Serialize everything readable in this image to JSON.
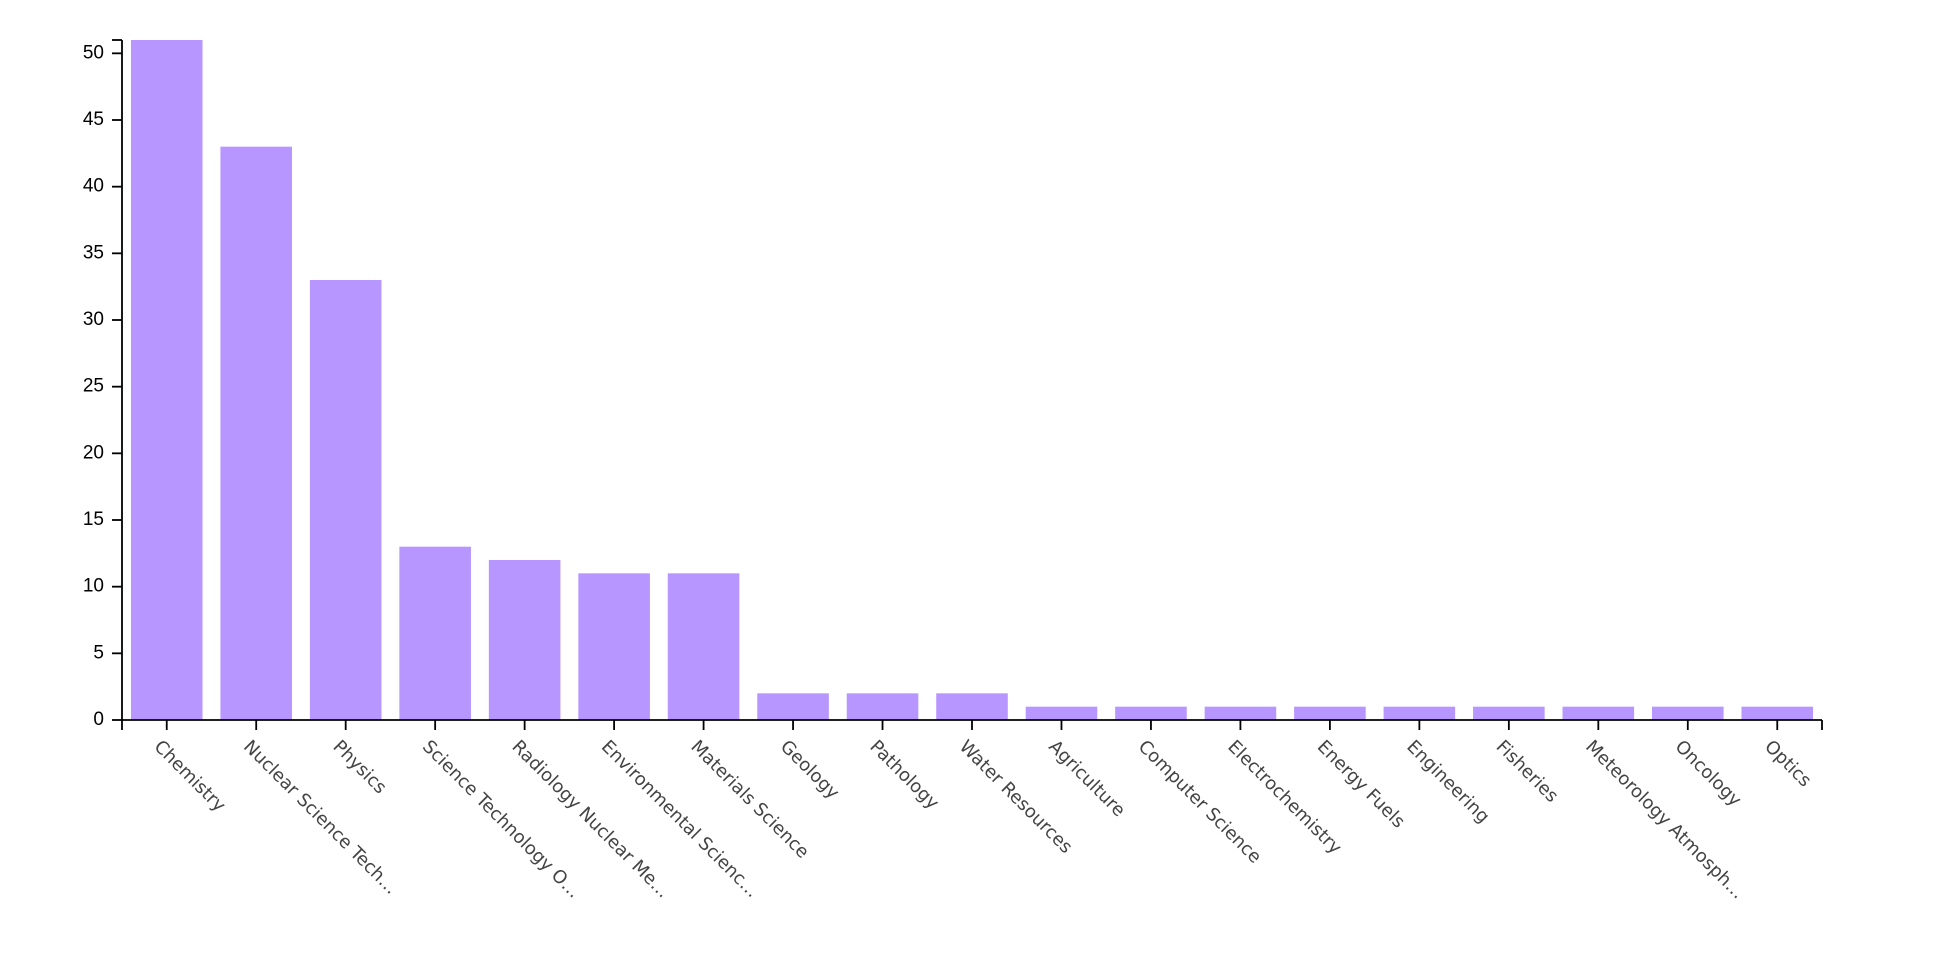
{
  "chart_data": {
    "type": "bar",
    "categories": [
      "Chemistry",
      "Nuclear Science Tech…",
      "Physics",
      "Science Technology O…",
      "Radiology Nuclear Me…",
      "Environmental Scienc…",
      "Materials Science",
      "Geology",
      "Pathology",
      "Water Resources",
      "Agriculture",
      "Computer Science",
      "Electrochemistry",
      "Energy Fuels",
      "Engineering",
      "Fisheries",
      "Meteorology Atmosph…",
      "Oncology",
      "Optics"
    ],
    "values": [
      51,
      43,
      33,
      13,
      12,
      11,
      11,
      2,
      2,
      2,
      1,
      1,
      1,
      1,
      1,
      1,
      1,
      1,
      1
    ],
    "ylim": [
      0,
      51
    ],
    "yticks": [
      0,
      5,
      10,
      15,
      20,
      25,
      30,
      35,
      40,
      45,
      50
    ],
    "title": "",
    "xlabel": "",
    "ylabel": "",
    "grid": false,
    "legend": "none",
    "bar_color": "#b896ff"
  }
}
